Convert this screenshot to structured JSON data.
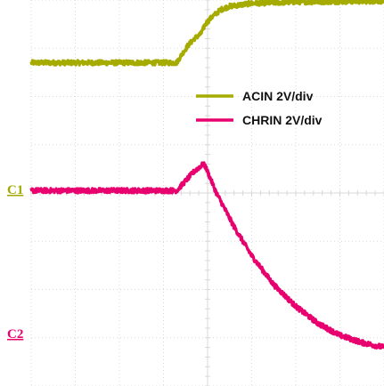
{
  "chart_data": {
    "type": "line",
    "title": "",
    "xlabel": "",
    "ylabel": "",
    "grid": true,
    "grid_divisions": {
      "x": 8,
      "y": 8
    },
    "legend_position": "center-right",
    "channel_markers": [
      {
        "label": "C1",
        "color": "#a3a800"
      },
      {
        "label": "C2",
        "color": "#e8006e"
      }
    ],
    "x_range_div": [
      0,
      8
    ],
    "y_range_div": [
      0,
      8
    ],
    "series": [
      {
        "name": "ACIN 2V/div",
        "color": "#a6ab00",
        "noise": 0.05,
        "points": [
          [
            0,
            6.7
          ],
          [
            3.3,
            6.7
          ],
          [
            3.4,
            6.85
          ],
          [
            3.55,
            7.05
          ],
          [
            3.7,
            7.2
          ],
          [
            3.85,
            7.3
          ],
          [
            3.95,
            7.5
          ],
          [
            4.1,
            7.65
          ],
          [
            4.3,
            7.8
          ],
          [
            4.5,
            7.87
          ],
          [
            5.0,
            7.93
          ],
          [
            6.0,
            7.96
          ],
          [
            8.0,
            7.98
          ]
        ]
      },
      {
        "name": "CHRIN 2V/div",
        "color": "#e8006e",
        "noise": 0.05,
        "points": [
          [
            0,
            4.05
          ],
          [
            3.3,
            4.05
          ],
          [
            3.5,
            4.25
          ],
          [
            3.7,
            4.45
          ],
          [
            3.9,
            4.6
          ],
          [
            3.95,
            4.55
          ],
          [
            4.2,
            4.0
          ],
          [
            4.6,
            3.3
          ],
          [
            5.0,
            2.7
          ],
          [
            5.5,
            2.1
          ],
          [
            6.0,
            1.65
          ],
          [
            6.5,
            1.3
          ],
          [
            7.0,
            1.05
          ],
          [
            7.5,
            0.9
          ],
          [
            8.0,
            0.8
          ]
        ]
      }
    ]
  }
}
